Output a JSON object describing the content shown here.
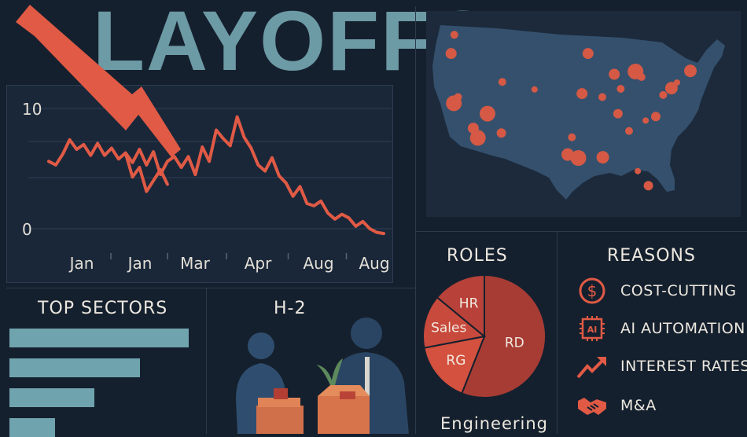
{
  "title": "LAYOFFS",
  "chart_data": [
    {
      "type": "line",
      "x_tick_labels": [
        "Jan",
        "Jan",
        "Mar",
        "Apr",
        "Aug",
        "Aug"
      ],
      "y_tick_labels": [
        "10",
        "0"
      ],
      "ylim": [
        0,
        10
      ],
      "series": [
        {
          "values": [
            5.6,
            5.3,
            6.2,
            7.4,
            6.6,
            7.0,
            6.1,
            7.1,
            6.1,
            6.7,
            5.8,
            6.3,
            5.5,
            6.6,
            5.3,
            6.4,
            4.5,
            5.6,
            6.0,
            5.1,
            6.0,
            4.5,
            6.8,
            5.6,
            8.2,
            7.5,
            6.9,
            9.3,
            7.6,
            6.7,
            5.3,
            4.8,
            5.9,
            4.4,
            3.8,
            2.7,
            3.5,
            2.1,
            1.9,
            2.3,
            1.3,
            0.8,
            1.2,
            0.9,
            0.2,
            0.6,
            0.0,
            -0.3,
            -0.4
          ]
        },
        {
          "values": [
            null,
            null,
            null,
            null,
            null,
            null,
            null,
            null,
            null,
            null,
            null,
            6.3,
            4.3,
            5.1,
            3.1,
            4.0,
            4.9,
            3.7
          ]
        }
      ],
      "colors": {
        "line": "#e05a45"
      }
    },
    {
      "type": "bar",
      "title": "TOP SECTORS",
      "values": [
        228,
        166,
        108,
        58
      ],
      "xlim": [
        0,
        228
      ]
    },
    {
      "type": "pie",
      "title": "ROLES",
      "categories": [
        "RD",
        "RG",
        "Sales",
        "HR"
      ],
      "values": [
        56,
        16,
        14,
        14
      ],
      "colors": [
        "#a73c35",
        "#d3513e",
        "#c84a3c",
        "#b84239"
      ]
    }
  ],
  "h2_label": "H-2",
  "engineering_label": "Engineering",
  "reasons": {
    "title": "REASONS",
    "items": [
      {
        "label": "COST-CUTTING",
        "icon": "dollar-icon"
      },
      {
        "label": "AI AUTOMATION",
        "icon": "ai-chip-icon"
      },
      {
        "label": "INTEREST RATES",
        "icon": "trend-up-icon"
      },
      {
        "label": "M&A",
        "icon": "handshake-icon"
      }
    ]
  },
  "map_points": [
    {
      "lon": -122.4,
      "lat": 37.7
    },
    {
      "lon": -118.2,
      "lat": 34.1
    },
    {
      "lon": -122.3,
      "lat": 47.6
    },
    {
      "lon": -112.1,
      "lat": 33.4
    },
    {
      "lon": -104.9,
      "lat": 39.7
    },
    {
      "lon": -97.7,
      "lat": 30.3
    },
    {
      "lon": -96.8,
      "lat": 32.8
    },
    {
      "lon": -95.4,
      "lat": 29.8
    },
    {
      "lon": -87.6,
      "lat": 41.9
    },
    {
      "lon": -84.4,
      "lat": 33.7
    },
    {
      "lon": -80.2,
      "lat": 25.8
    },
    {
      "lon": -74.0,
      "lat": 40.7
    },
    {
      "lon": -71.1,
      "lat": 42.4
    },
    {
      "lon": -77.0,
      "lat": 38.9
    },
    {
      "lon": -83.0,
      "lat": 42.3
    },
    {
      "lon": -93.3,
      "lat": 44.9
    },
    {
      "lon": -90.2,
      "lat": 38.6
    },
    {
      "lon": -86.8,
      "lat": 36.2
    },
    {
      "lon": -80.8,
      "lat": 35.2
    },
    {
      "lon": -75.2,
      "lat": 39.9
    },
    {
      "lon": -111.9,
      "lat": 40.8
    },
    {
      "lon": -115.1,
      "lat": 36.2
    },
    {
      "lon": -94.6,
      "lat": 39.1
    },
    {
      "lon": -81.7,
      "lat": 41.5
    },
    {
      "lon": -78.6,
      "lat": 35.8
    },
    {
      "lon": -82.5,
      "lat": 27.9
    },
    {
      "lon": -90.1,
      "lat": 29.9
    },
    {
      "lon": -86.2,
      "lat": 39.8
    },
    {
      "lon": -117.2,
      "lat": 32.7
    },
    {
      "lon": -123.0,
      "lat": 44.9
    },
    {
      "lon": -121.5,
      "lat": 38.6
    }
  ],
  "colors": {
    "accent": "#e05a45",
    "title": "#6c9aa5",
    "bar": "#6fa3ae",
    "map": "#34506d",
    "background": "#15202e"
  }
}
